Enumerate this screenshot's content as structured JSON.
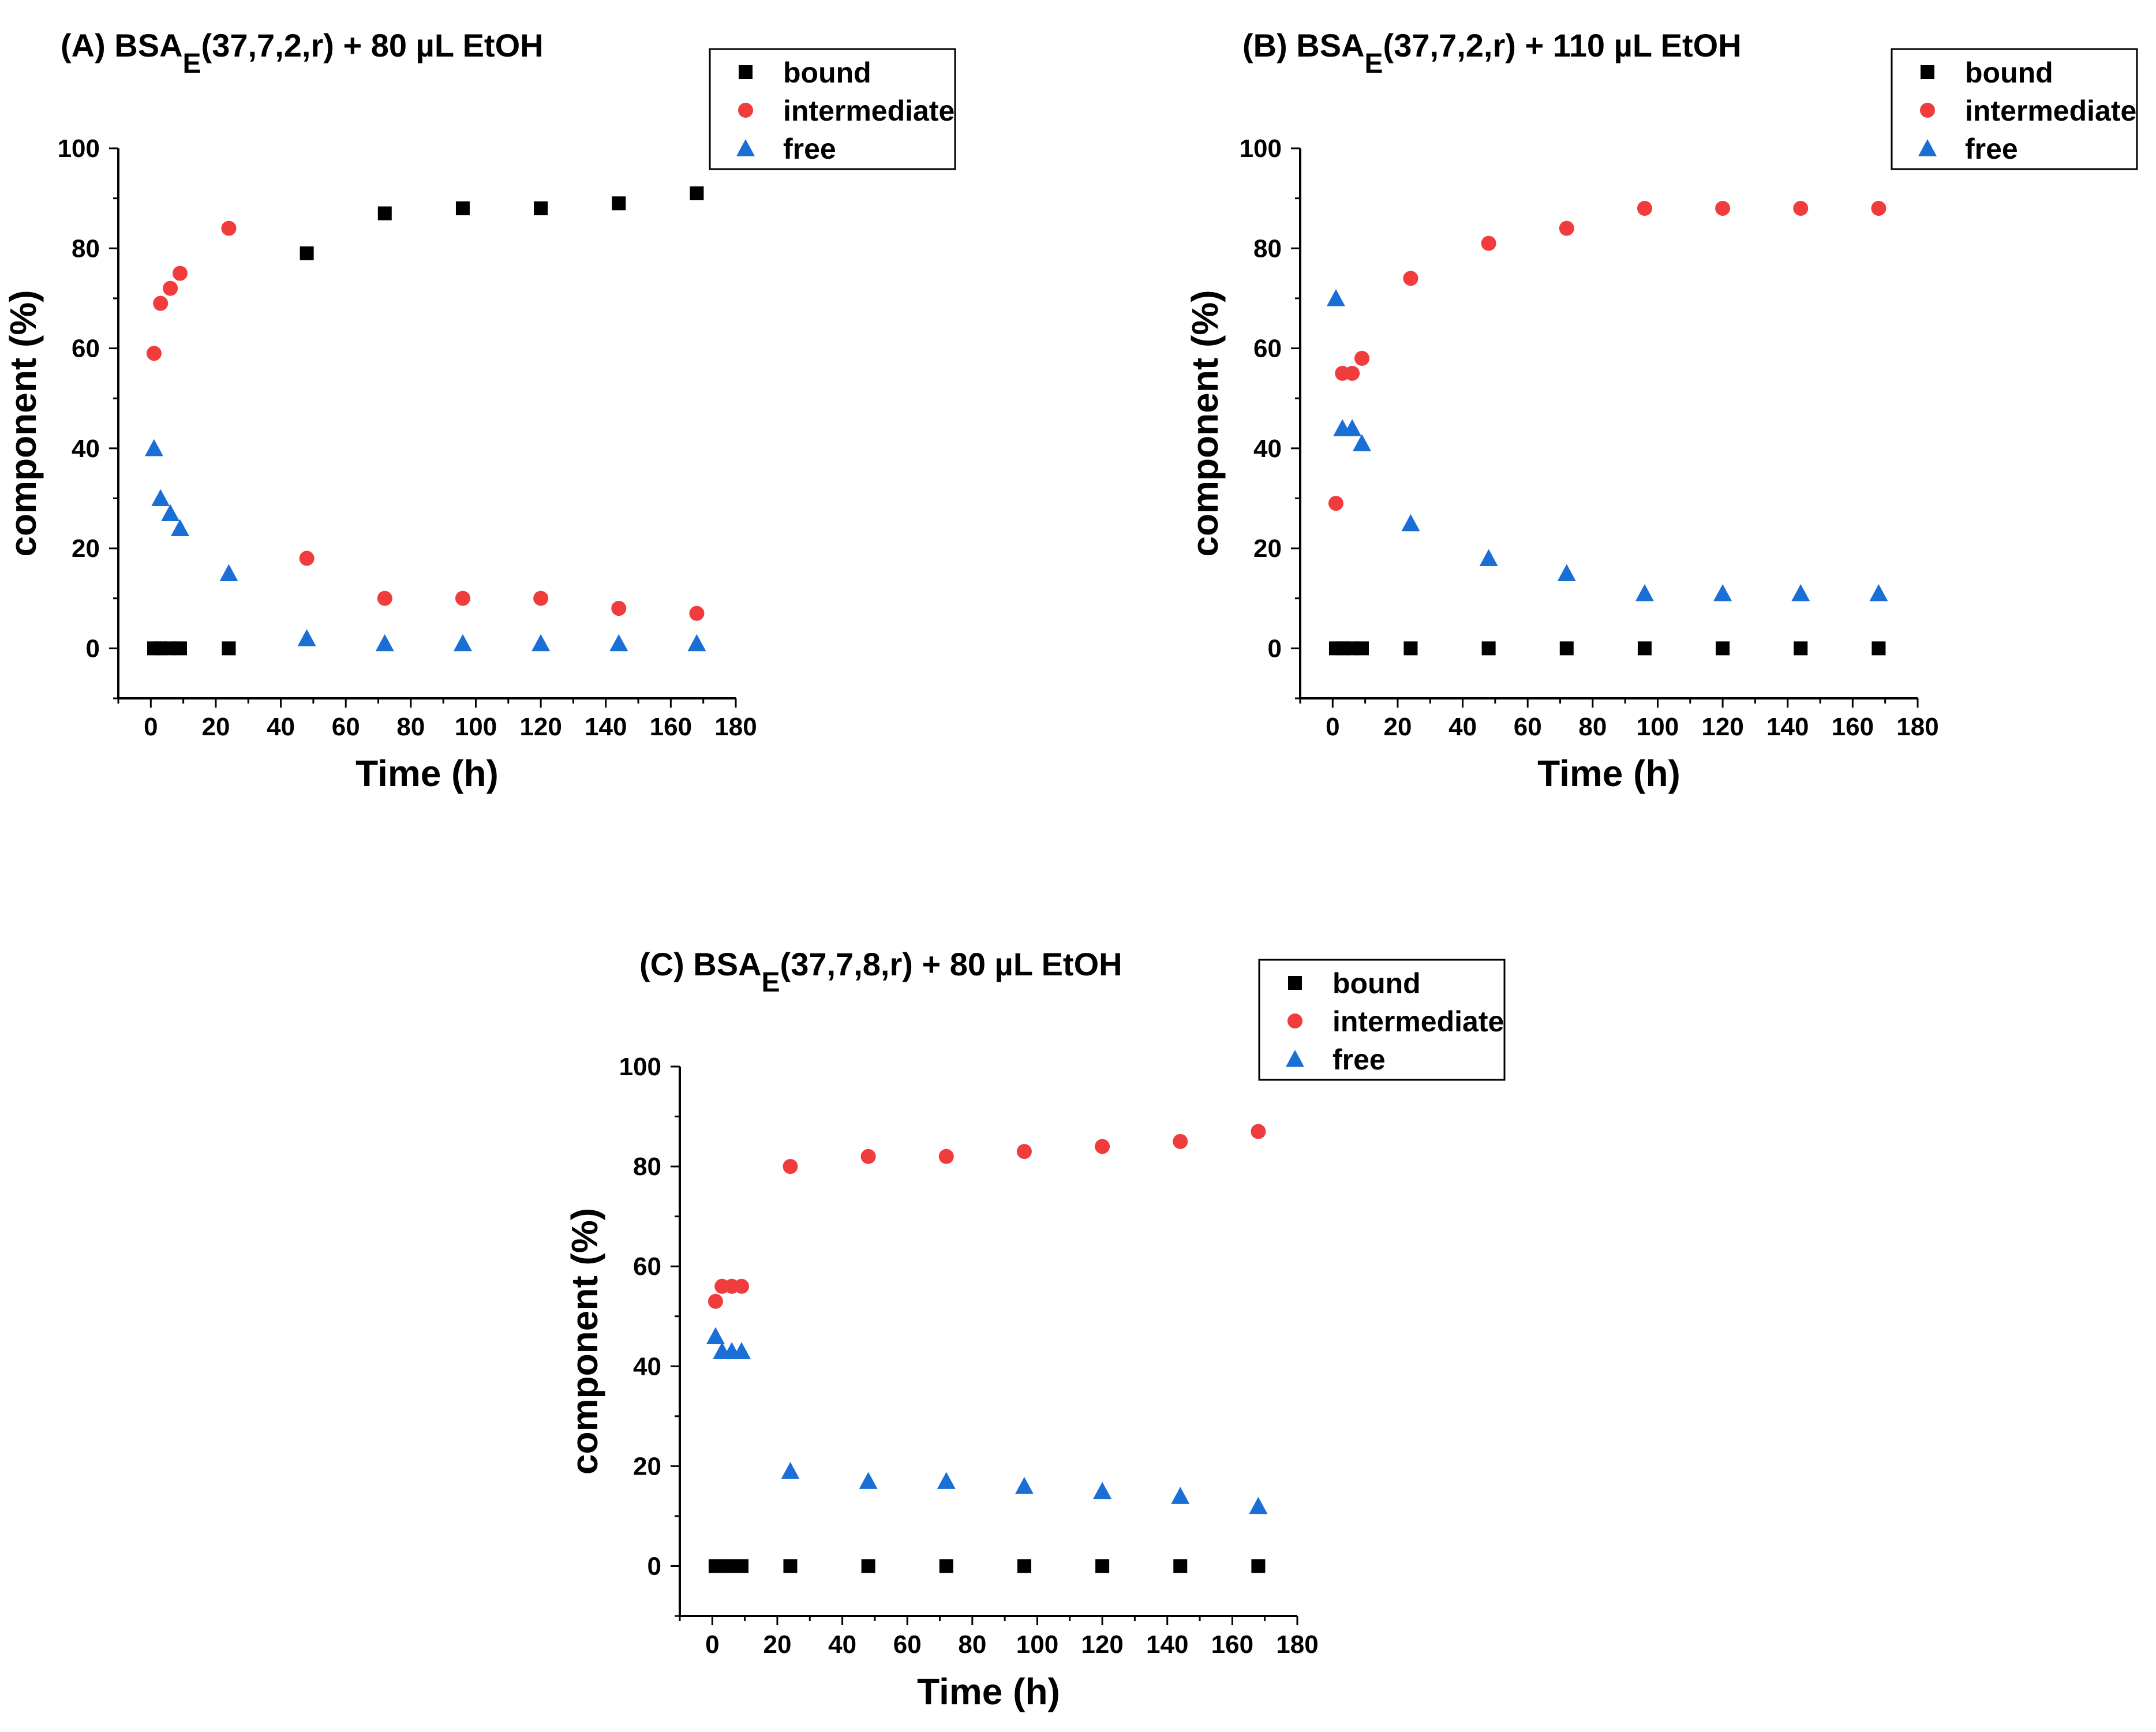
{
  "figure": {
    "panels": [
      {
        "title_prefix": "(A) BSA",
        "title_subscript": "E",
        "title_suffix": "(37,7,2,r) + 80 µL EtOH"
      },
      {
        "title_prefix": "(B) BSA",
        "title_subscript": "E",
        "title_suffix": "(37,7,2,r) + 110 µL EtOH"
      },
      {
        "title_prefix": "(C) BSA",
        "title_subscript": "E",
        "title_suffix": "(37,7,8,r) + 80 µL EtOH"
      }
    ]
  },
  "colors": {
    "bound": "#000000",
    "intermediate": "#f03c3c",
    "free": "#1a6fd6"
  },
  "chart_data": [
    {
      "type": "scatter",
      "title": "(A) BSAE(37,7,2,r) + 80 µL EtOH",
      "xlabel": "Time (h)",
      "ylabel": "component (%)",
      "xlim": [
        -10,
        180
      ],
      "ylim": [
        -10,
        100
      ],
      "xticks": [
        0,
        20,
        40,
        60,
        80,
        100,
        120,
        140,
        160,
        180
      ],
      "yticks": [
        0,
        20,
        40,
        60,
        80,
        100
      ],
      "legend_position": "top-right",
      "series": [
        {
          "name": "bound",
          "marker": "square",
          "x": [
            1,
            3,
            6,
            9,
            24,
            48,
            72,
            96,
            120,
            144,
            168
          ],
          "y": [
            0,
            0,
            0,
            0,
            0,
            79,
            87,
            88,
            88,
            89,
            91
          ]
        },
        {
          "name": "intermediate",
          "marker": "circle",
          "x": [
            1,
            3,
            6,
            9,
            24,
            48,
            72,
            96,
            120,
            144,
            168
          ],
          "y": [
            59,
            69,
            72,
            75,
            84,
            18,
            10,
            10,
            10,
            8,
            7
          ]
        },
        {
          "name": "free",
          "marker": "triangle",
          "x": [
            1,
            3,
            6,
            9,
            24,
            48,
            72,
            96,
            120,
            144,
            168
          ],
          "y": [
            40,
            30,
            27,
            24,
            15,
            2,
            1,
            1,
            1,
            1,
            1
          ]
        }
      ]
    },
    {
      "type": "scatter",
      "title": "(B) BSAE(37,7,2,r) + 110 µL EtOH",
      "xlabel": "Time (h)",
      "ylabel": "component (%)",
      "xlim": [
        -10,
        180
      ],
      "ylim": [
        -10,
        100
      ],
      "xticks": [
        0,
        20,
        40,
        60,
        80,
        100,
        120,
        140,
        160,
        180
      ],
      "yticks": [
        0,
        20,
        40,
        60,
        80,
        100
      ],
      "legend_position": "top-right",
      "series": [
        {
          "name": "bound",
          "marker": "square",
          "x": [
            1,
            3,
            6,
            9,
            24,
            48,
            72,
            96,
            120,
            144,
            168
          ],
          "y": [
            0,
            0,
            0,
            0,
            0,
            0,
            0,
            0,
            0,
            0,
            0
          ]
        },
        {
          "name": "intermediate",
          "marker": "circle",
          "x": [
            1,
            3,
            6,
            9,
            24,
            48,
            72,
            96,
            120,
            144,
            168
          ],
          "y": [
            29,
            55,
            55,
            58,
            74,
            81,
            84,
            88,
            88,
            88,
            88
          ]
        },
        {
          "name": "free",
          "marker": "triangle",
          "x": [
            1,
            3,
            6,
            9,
            24,
            48,
            72,
            96,
            120,
            144,
            168
          ],
          "y": [
            70,
            44,
            44,
            41,
            25,
            18,
            15,
            11,
            11,
            11,
            11
          ]
        }
      ]
    },
    {
      "type": "scatter",
      "title": "(C) BSAE(37,7,8,r) + 80 µL EtOH",
      "xlabel": "Time (h)",
      "ylabel": "component (%)",
      "xlim": [
        -10,
        180
      ],
      "ylim": [
        -10,
        100
      ],
      "xticks": [
        0,
        20,
        40,
        60,
        80,
        100,
        120,
        140,
        160,
        180
      ],
      "yticks": [
        0,
        20,
        40,
        60,
        80,
        100
      ],
      "legend_position": "top-right",
      "series": [
        {
          "name": "bound",
          "marker": "square",
          "x": [
            1,
            3,
            6,
            9,
            24,
            48,
            72,
            96,
            120,
            144,
            168
          ],
          "y": [
            0,
            0,
            0,
            0,
            0,
            0,
            0,
            0,
            0,
            0,
            0
          ]
        },
        {
          "name": "intermediate",
          "marker": "circle",
          "x": [
            1,
            3,
            6,
            9,
            24,
            48,
            72,
            96,
            120,
            144,
            168
          ],
          "y": [
            53,
            56,
            56,
            56,
            80,
            82,
            82,
            83,
            84,
            85,
            87
          ]
        },
        {
          "name": "free",
          "marker": "triangle",
          "x": [
            1,
            3,
            6,
            9,
            24,
            48,
            72,
            96,
            120,
            144,
            168
          ],
          "y": [
            46,
            43,
            43,
            43,
            19,
            17,
            17,
            16,
            15,
            14,
            12
          ]
        }
      ]
    }
  ]
}
